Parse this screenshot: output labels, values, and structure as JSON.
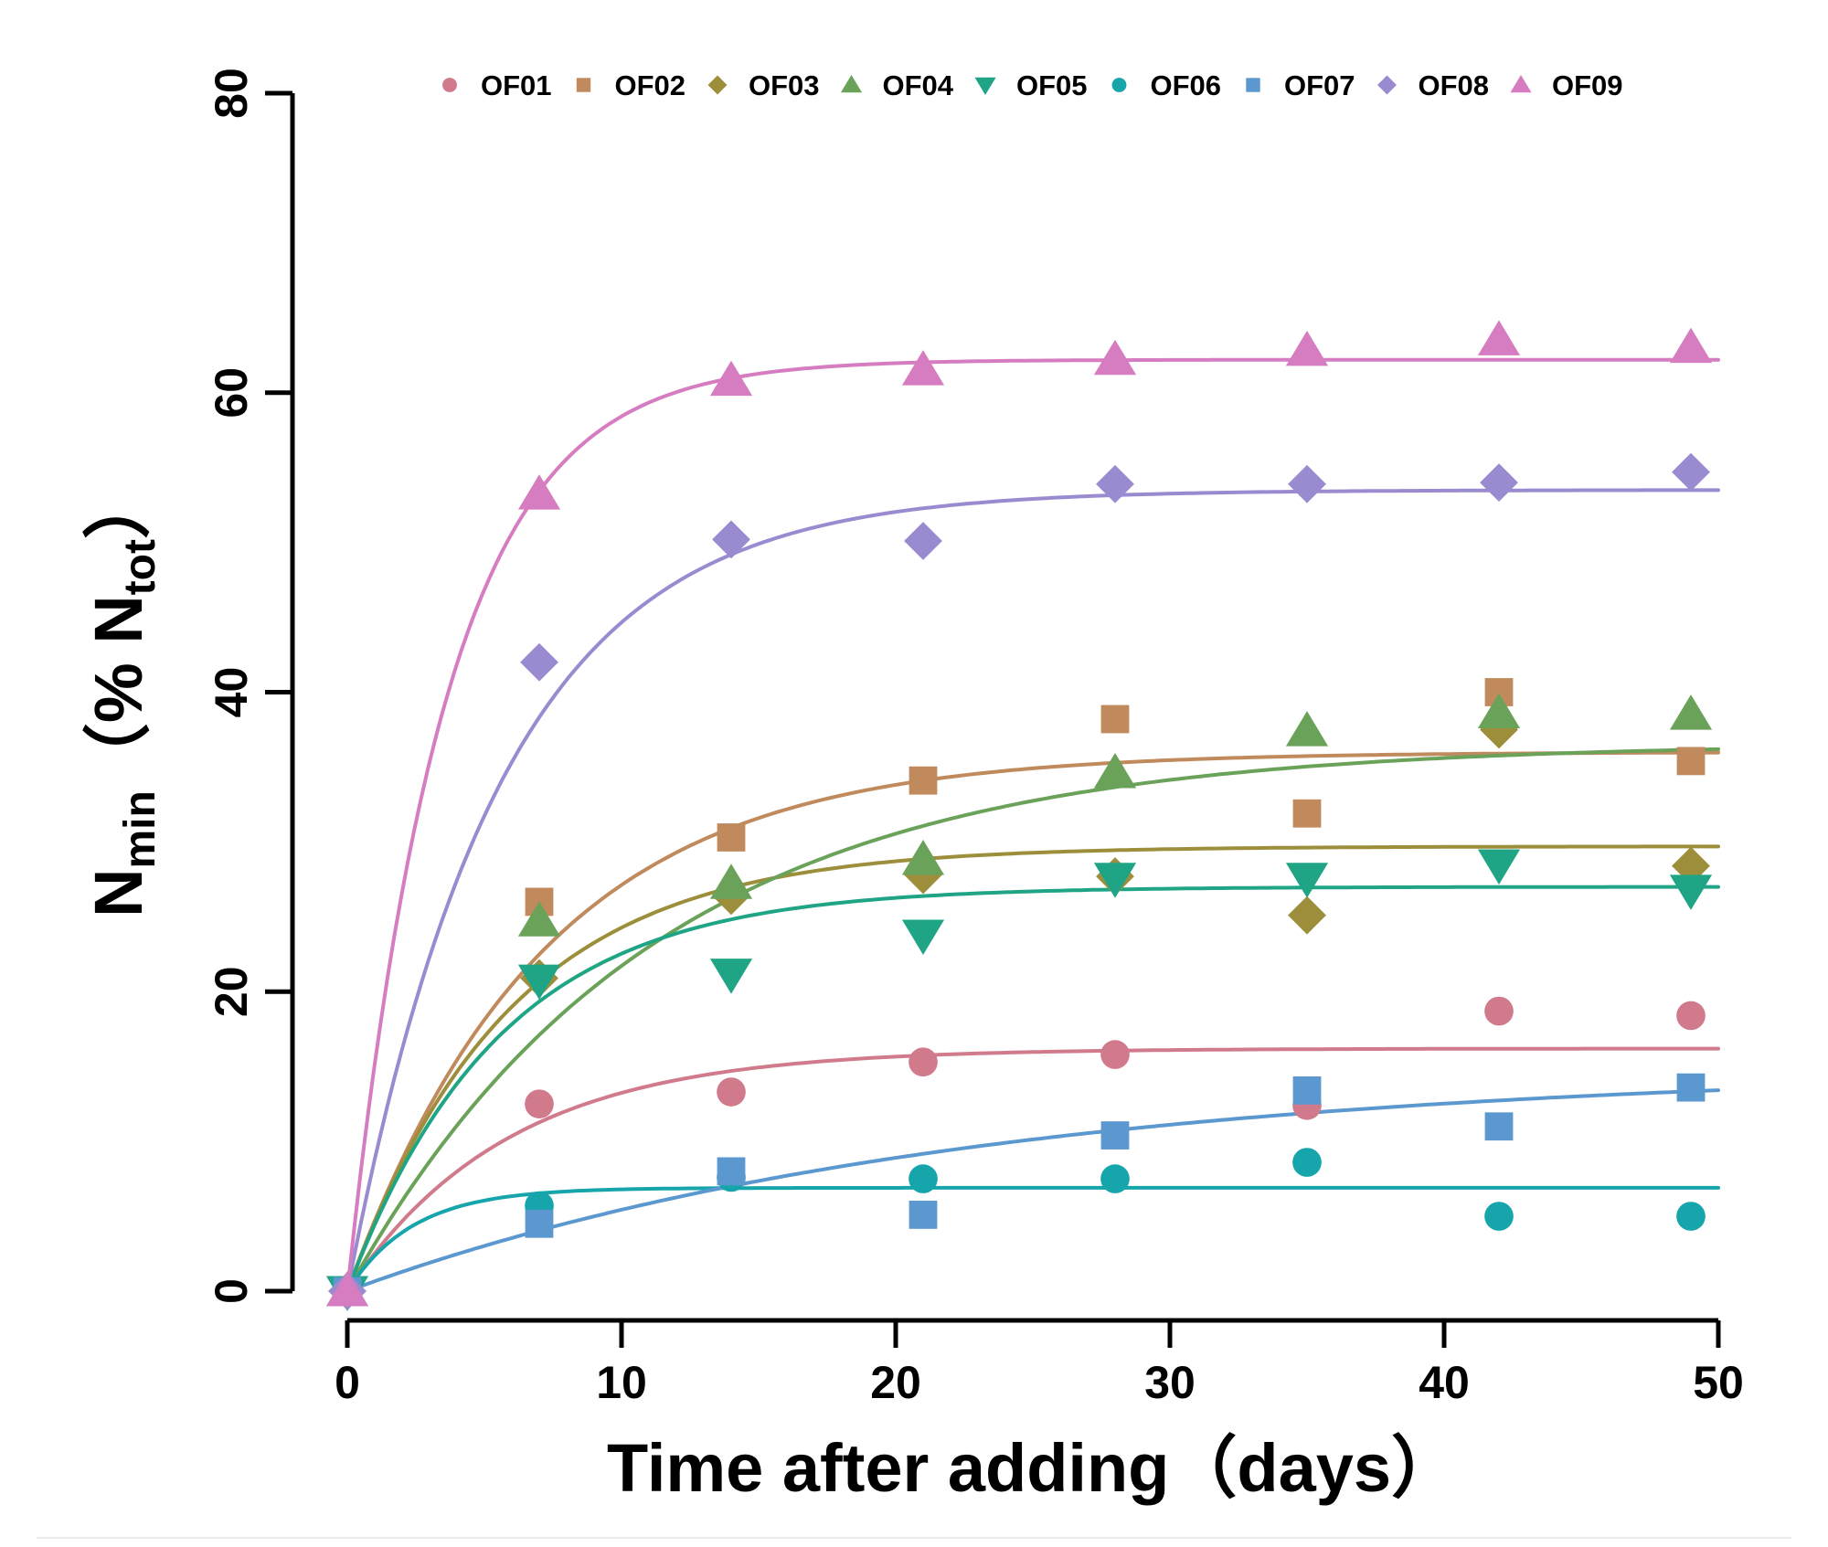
{
  "chart_data": {
    "type": "scatter",
    "title": "",
    "xlabel": "Time after adding（days）",
    "ylabel": {
      "base": "N",
      "sub": "min",
      "paren_open": "（",
      "percent": "% N",
      "sub2": "tot",
      "paren_close": "）"
    },
    "xlim": [
      0,
      50
    ],
    "ylim": [
      0,
      80
    ],
    "x_ticks": [
      0,
      10,
      20,
      30,
      40,
      50
    ],
    "y_ticks": [
      0,
      20,
      40,
      60,
      80
    ],
    "x_tick_labels": [
      "0",
      "10",
      "20",
      "30",
      "40",
      "50"
    ],
    "y_tick_labels": [
      "0",
      "20",
      "40",
      "60",
      "80"
    ],
    "grid": false,
    "legend_position": "top",
    "x": [
      0,
      7,
      14,
      21,
      28,
      35,
      42,
      49
    ],
    "series": [
      {
        "name": "OF01",
        "color": "#D07A8C",
        "marker": "circle",
        "values": [
          0,
          12.5,
          13.3,
          15.3,
          15.8,
          12.4,
          18.7,
          18.4
        ],
        "fit": {
          "a": 16.2,
          "k": 0.17
        }
      },
      {
        "name": "OF02",
        "color": "#C08A5C",
        "marker": "square",
        "values": [
          0,
          26.0,
          30.3,
          34.1,
          38.2,
          31.9,
          40.0,
          35.4
        ],
        "fit": {
          "a": 36.0,
          "k": 0.14
        }
      },
      {
        "name": "OF03",
        "color": "#9C8E3A",
        "marker": "diamond",
        "values": [
          0,
          20.9,
          26.4,
          27.8,
          27.7,
          25.1,
          37.5,
          28.4
        ],
        "fit": {
          "a": 29.7,
          "k": 0.17
        }
      },
      {
        "name": "OF04",
        "color": "#6AA25A",
        "marker": "triangle-up",
        "values": [
          0,
          24.7,
          27.2,
          28.8,
          34.6,
          37.4,
          38.6,
          38.5
        ],
        "fit": {
          "a": 36.6,
          "k": 0.09
        }
      },
      {
        "name": "OF05",
        "color": "#1FA585",
        "marker": "triangle-down",
        "values": [
          0,
          20.8,
          21.2,
          23.8,
          27.6,
          27.6,
          28.5,
          26.8
        ],
        "fit": {
          "a": 27.0,
          "k": 0.18
        }
      },
      {
        "name": "OF06",
        "color": "#17A5AC",
        "marker": "circle",
        "values": [
          0,
          5.7,
          7.6,
          7.5,
          7.5,
          8.6,
          5.0,
          5.0
        ],
        "fit": {
          "a": 6.9,
          "k": 0.42
        }
      },
      {
        "name": "OF07",
        "color": "#5B98CF",
        "marker": "square",
        "values": [
          0,
          4.5,
          8.0,
          5.1,
          10.4,
          13.4,
          11.0,
          13.6
        ],
        "fit": {
          "a": 15.0,
          "k": 0.045
        }
      },
      {
        "name": "OF08",
        "color": "#9A8BD0",
        "marker": "diamond",
        "values": [
          0,
          42.0,
          50.2,
          50.1,
          53.9,
          53.9,
          54.0,
          54.7
        ],
        "fit": {
          "a": 53.5,
          "k": 0.18
        }
      },
      {
        "name": "OF09",
        "color": "#D67CC0",
        "marker": "triangle-up",
        "values": [
          0,
          53.2,
          60.8,
          61.5,
          62.2,
          62.8,
          63.5,
          63.0
        ],
        "fit": {
          "a": 62.2,
          "k": 0.28
        }
      }
    ]
  }
}
